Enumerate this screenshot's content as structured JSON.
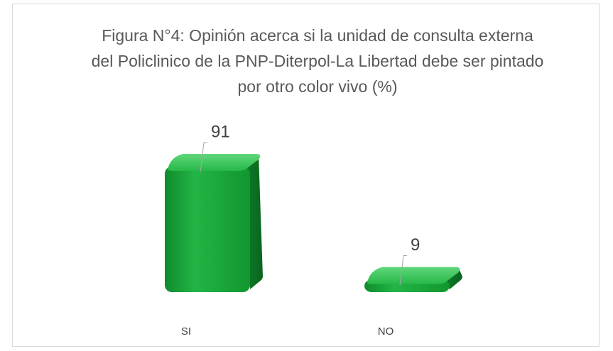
{
  "chart_data": {
    "type": "bar3d",
    "title": "Figura N°4: Opinión acerca si la unidad de consulta externa del Policlinico de la PNP-Diterpol-La Libertad debe ser pintado por otro color vivo (%)",
    "categories": [
      "SI",
      "NO"
    ],
    "values": [
      91,
      9
    ],
    "color": "#1fb040"
  }
}
